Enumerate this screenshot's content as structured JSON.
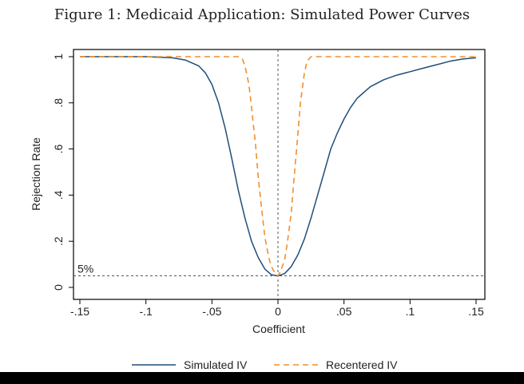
{
  "title": "Figure 1: Medicaid Application: Simulated Power Curves",
  "colors": {
    "simulated": "#1f4e79",
    "recentered": "#f28e2b",
    "reference": "#555555",
    "frame": "#000000"
  },
  "chart_data": {
    "type": "line",
    "xlabel": "Coefficient",
    "ylabel": "Rejection Rate",
    "xlim": [
      -0.15,
      0.15
    ],
    "ylim": [
      0,
      1
    ],
    "xticks": [
      -0.15,
      -0.1,
      -0.05,
      0,
      0.05,
      0.1,
      0.15
    ],
    "xtick_labels": [
      "-.15",
      "-.1",
      "-.05",
      "0",
      ".05",
      ".1",
      ".15"
    ],
    "yticks": [
      0,
      0.2,
      0.4,
      0.6,
      0.8,
      1
    ],
    "ytick_labels": [
      "0",
      ".2",
      ".4",
      ".6",
      ".8",
      "1"
    ],
    "grid": false,
    "legend_position": "bottom",
    "reference_lines": [
      {
        "axis": "x",
        "value": 0,
        "style": "dashed"
      },
      {
        "axis": "y",
        "value": 0.05,
        "style": "dashed",
        "label": "5%"
      }
    ],
    "series": [
      {
        "name": "Simulated IV",
        "style": "solid",
        "x": [
          -0.15,
          -0.1,
          -0.08,
          -0.07,
          -0.06,
          -0.055,
          -0.05,
          -0.045,
          -0.04,
          -0.035,
          -0.03,
          -0.025,
          -0.02,
          -0.015,
          -0.01,
          -0.005,
          0,
          0.005,
          0.01,
          0.015,
          0.02,
          0.025,
          0.03,
          0.035,
          0.04,
          0.045,
          0.05,
          0.055,
          0.06,
          0.07,
          0.08,
          0.09,
          0.1,
          0.11,
          0.12,
          0.13,
          0.14,
          0.15
        ],
        "y": [
          1.0,
          1.0,
          0.995,
          0.985,
          0.96,
          0.93,
          0.88,
          0.8,
          0.69,
          0.56,
          0.42,
          0.3,
          0.2,
          0.13,
          0.08,
          0.055,
          0.05,
          0.06,
          0.09,
          0.14,
          0.21,
          0.3,
          0.4,
          0.5,
          0.6,
          0.67,
          0.73,
          0.78,
          0.82,
          0.87,
          0.9,
          0.92,
          0.935,
          0.95,
          0.965,
          0.98,
          0.99,
          0.995
        ]
      },
      {
        "name": "Recentered IV",
        "style": "dashed",
        "x": [
          -0.15,
          -0.03,
          -0.027,
          -0.025,
          -0.022,
          -0.02,
          -0.017,
          -0.015,
          -0.012,
          -0.01,
          -0.007,
          -0.005,
          -0.002,
          0,
          0.002,
          0.005,
          0.007,
          0.01,
          0.012,
          0.015,
          0.017,
          0.02,
          0.022,
          0.025,
          0.15
        ],
        "y": [
          1.0,
          1.0,
          0.99,
          0.96,
          0.88,
          0.78,
          0.62,
          0.48,
          0.32,
          0.22,
          0.13,
          0.09,
          0.06,
          0.05,
          0.07,
          0.12,
          0.19,
          0.32,
          0.46,
          0.66,
          0.8,
          0.93,
          0.98,
          1.0,
          1.0
        ]
      }
    ]
  }
}
